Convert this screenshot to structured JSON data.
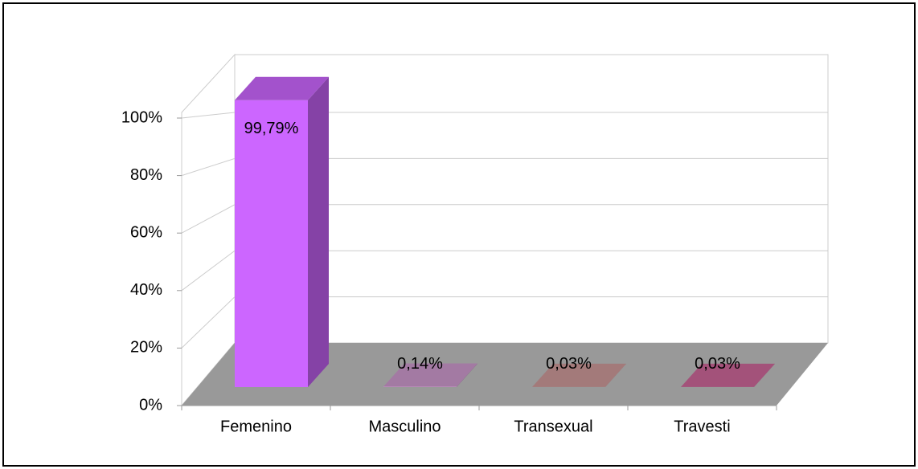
{
  "chart_data": {
    "type": "bar3d",
    "categories": [
      "Femenino",
      "Masculino",
      "Transexual",
      "Travesti"
    ],
    "values": [
      99.79,
      0.14,
      0.03,
      0.03
    ],
    "value_labels": [
      "99,79%",
      "0,14%",
      "0,03%",
      "0,03%"
    ],
    "colors": [
      "#cc66ff",
      "#cc99cc",
      "#cc9999",
      "#cc6699"
    ],
    "ylim": [
      0,
      100
    ],
    "yticks": [
      {
        "value": 0,
        "label": "0%"
      },
      {
        "value": 20,
        "label": "20%"
      },
      {
        "value": 40,
        "label": "40%"
      },
      {
        "value": 60,
        "label": "60%"
      },
      {
        "value": 80,
        "label": "80%"
      },
      {
        "value": 100,
        "label": "100%"
      }
    ],
    "grid": true
  }
}
